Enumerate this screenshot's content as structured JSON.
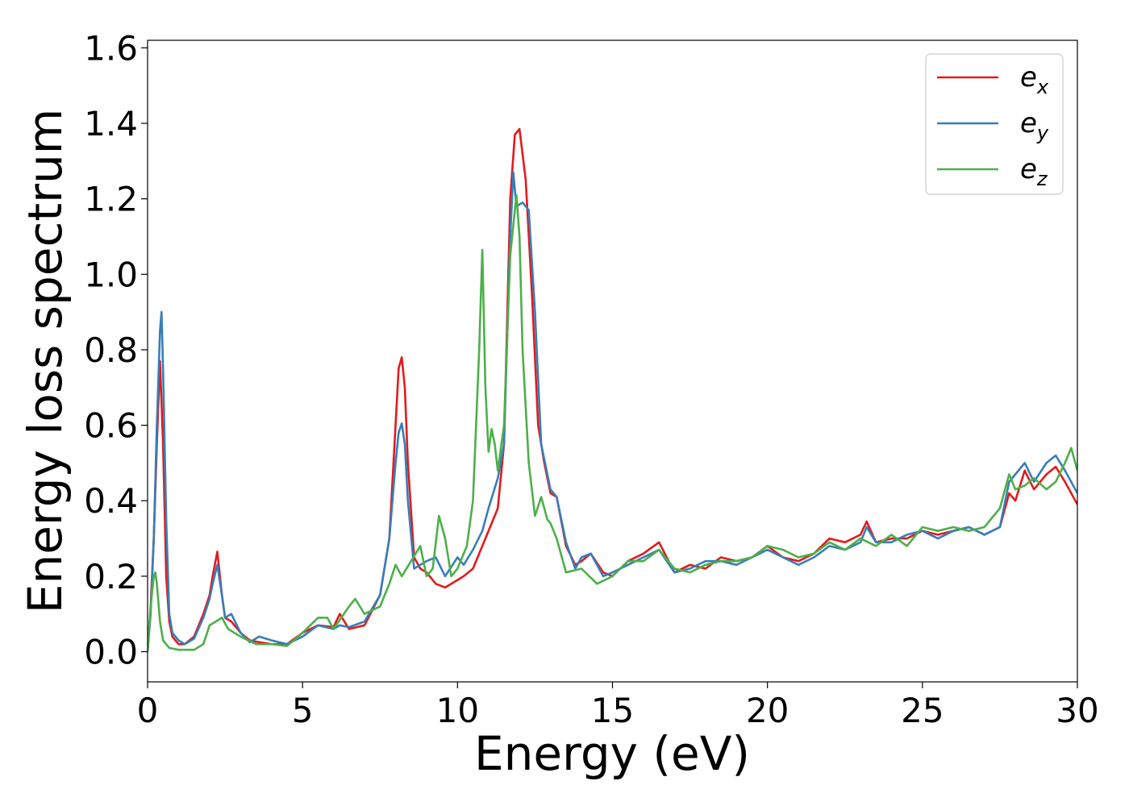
{
  "chart_data": {
    "type": "line",
    "title": "",
    "xlabel": "Energy (eV)",
    "ylabel": "Energy loss spectrum",
    "xlim": [
      0,
      30
    ],
    "ylim": [
      -0.08,
      1.62
    ],
    "xticks": [
      0,
      5,
      10,
      15,
      20,
      25,
      30
    ],
    "yticks": [
      0.0,
      0.2,
      0.4,
      0.6,
      0.8,
      1.0,
      1.2,
      1.4,
      1.6
    ],
    "xtick_labels": [
      "0",
      "5",
      "10",
      "15",
      "20",
      "25",
      "30"
    ],
    "ytick_labels": [
      "0.0",
      "0.2",
      "0.4",
      "0.6",
      "0.8",
      "1.0",
      "1.2",
      "1.4",
      "1.6"
    ],
    "grid": false,
    "legend_position": "top-right",
    "series": [
      {
        "name": "e_x",
        "label_base": "e",
        "label_sub": "x",
        "color": "#e41a1c",
        "x": [
          0,
          0.1,
          0.2,
          0.3,
          0.4,
          0.5,
          0.6,
          0.7,
          0.8,
          1.0,
          1.2,
          1.5,
          1.8,
          2.0,
          2.1,
          2.25,
          2.4,
          2.5,
          2.7,
          3.0,
          3.3,
          3.6,
          4.0,
          4.5,
          5.0,
          5.5,
          6.0,
          6.2,
          6.5,
          7.0,
          7.5,
          7.8,
          8.0,
          8.1,
          8.2,
          8.3,
          8.4,
          8.6,
          8.8,
          9.0,
          9.3,
          9.6,
          10.0,
          10.2,
          10.5,
          10.8,
          11.0,
          11.3,
          11.5,
          11.7,
          11.85,
          12.0,
          12.2,
          12.4,
          12.6,
          12.8,
          13.0,
          13.2,
          13.5,
          13.8,
          14.0,
          14.3,
          14.7,
          15.0,
          15.5,
          16.0,
          16.5,
          17.0,
          17.5,
          18.0,
          18.5,
          19.0,
          19.5,
          20.0,
          20.5,
          21.0,
          21.5,
          22.0,
          22.5,
          23.0,
          23.2,
          23.5,
          24.0,
          24.5,
          25.0,
          25.5,
          26.0,
          26.5,
          27.0,
          27.5,
          27.8,
          28.0,
          28.3,
          28.6,
          29.0,
          29.3,
          29.6,
          30.0
        ],
        "y": [
          0.0,
          0.12,
          0.3,
          0.55,
          0.77,
          0.55,
          0.2,
          0.08,
          0.04,
          0.02,
          0.02,
          0.04,
          0.1,
          0.15,
          0.2,
          0.265,
          0.15,
          0.09,
          0.08,
          0.05,
          0.03,
          0.025,
          0.02,
          0.02,
          0.05,
          0.07,
          0.065,
          0.1,
          0.06,
          0.07,
          0.15,
          0.3,
          0.6,
          0.75,
          0.78,
          0.7,
          0.5,
          0.25,
          0.22,
          0.21,
          0.18,
          0.17,
          0.19,
          0.2,
          0.22,
          0.28,
          0.32,
          0.38,
          0.55,
          1.2,
          1.37,
          1.385,
          1.25,
          0.95,
          0.6,
          0.5,
          0.42,
          0.41,
          0.28,
          0.23,
          0.24,
          0.26,
          0.21,
          0.2,
          0.24,
          0.26,
          0.29,
          0.21,
          0.23,
          0.22,
          0.25,
          0.24,
          0.25,
          0.28,
          0.25,
          0.24,
          0.26,
          0.3,
          0.29,
          0.31,
          0.345,
          0.29,
          0.3,
          0.3,
          0.32,
          0.31,
          0.32,
          0.33,
          0.31,
          0.33,
          0.42,
          0.4,
          0.48,
          0.43,
          0.47,
          0.49,
          0.45,
          0.39
        ]
      },
      {
        "name": "e_y",
        "label_base": "e",
        "label_sub": "y",
        "color": "#377eb8",
        "x": [
          0,
          0.1,
          0.2,
          0.3,
          0.4,
          0.45,
          0.5,
          0.6,
          0.7,
          0.8,
          1.0,
          1.2,
          1.5,
          1.8,
          2.0,
          2.1,
          2.25,
          2.4,
          2.5,
          2.7,
          3.0,
          3.3,
          3.6,
          4.0,
          4.5,
          5.0,
          5.5,
          6.0,
          6.2,
          6.5,
          7.0,
          7.5,
          7.8,
          8.0,
          8.1,
          8.2,
          8.3,
          8.4,
          8.6,
          8.8,
          9.0,
          9.3,
          9.6,
          10.0,
          10.2,
          10.5,
          10.8,
          11.0,
          11.3,
          11.5,
          11.7,
          11.8,
          11.9,
          12.1,
          12.3,
          12.5,
          12.7,
          13.0,
          13.2,
          13.5,
          13.8,
          14.0,
          14.3,
          14.7,
          15.0,
          15.5,
          16.0,
          16.5,
          17.0,
          17.5,
          18.0,
          18.5,
          19.0,
          19.5,
          20.0,
          20.5,
          21.0,
          21.5,
          22.0,
          22.5,
          23.0,
          23.2,
          23.5,
          24.0,
          24.5,
          25.0,
          25.5,
          26.0,
          26.5,
          27.0,
          27.5,
          27.8,
          28.0,
          28.3,
          28.6,
          29.0,
          29.3,
          29.6,
          30.0
        ],
        "y": [
          0.0,
          0.1,
          0.3,
          0.6,
          0.85,
          0.9,
          0.75,
          0.35,
          0.1,
          0.05,
          0.03,
          0.02,
          0.035,
          0.09,
          0.14,
          0.18,
          0.23,
          0.15,
          0.09,
          0.1,
          0.05,
          0.025,
          0.04,
          0.03,
          0.02,
          0.04,
          0.07,
          0.06,
          0.07,
          0.065,
          0.08,
          0.15,
          0.3,
          0.5,
          0.58,
          0.605,
          0.55,
          0.4,
          0.22,
          0.23,
          0.24,
          0.25,
          0.2,
          0.25,
          0.23,
          0.27,
          0.32,
          0.38,
          0.46,
          0.55,
          1.1,
          1.27,
          1.18,
          1.19,
          1.17,
          0.9,
          0.55,
          0.43,
          0.41,
          0.29,
          0.22,
          0.25,
          0.26,
          0.2,
          0.21,
          0.23,
          0.25,
          0.27,
          0.21,
          0.22,
          0.24,
          0.24,
          0.23,
          0.25,
          0.27,
          0.25,
          0.23,
          0.25,
          0.28,
          0.27,
          0.29,
          0.33,
          0.29,
          0.29,
          0.31,
          0.32,
          0.3,
          0.32,
          0.33,
          0.31,
          0.33,
          0.45,
          0.47,
          0.5,
          0.45,
          0.5,
          0.52,
          0.48,
          0.42
        ]
      },
      {
        "name": "e_z",
        "label_base": "e",
        "label_sub": "z",
        "color": "#4daf4a",
        "x": [
          0,
          0.1,
          0.2,
          0.25,
          0.3,
          0.4,
          0.5,
          0.7,
          1.0,
          1.5,
          1.8,
          2.0,
          2.2,
          2.4,
          2.6,
          2.8,
          3.0,
          3.5,
          4.0,
          4.5,
          5.0,
          5.5,
          5.8,
          6.0,
          6.5,
          6.7,
          7.0,
          7.5,
          7.8,
          8.0,
          8.2,
          8.5,
          8.8,
          9.0,
          9.2,
          9.4,
          9.6,
          9.8,
          10.0,
          10.3,
          10.5,
          10.7,
          10.8,
          10.9,
          11.0,
          11.1,
          11.2,
          11.3,
          11.5,
          11.7,
          11.9,
          12.0,
          12.1,
          12.3,
          12.5,
          12.7,
          12.9,
          13.0,
          13.2,
          13.5,
          14.0,
          14.5,
          15.0,
          15.5,
          16.0,
          16.5,
          17.0,
          17.5,
          18.0,
          18.5,
          19.0,
          19.5,
          20.0,
          20.5,
          21.0,
          21.5,
          22.0,
          22.5,
          23.0,
          23.5,
          24.0,
          24.5,
          25.0,
          25.5,
          26.0,
          26.5,
          27.0,
          27.5,
          27.8,
          28.0,
          28.3,
          28.6,
          29.0,
          29.3,
          29.6,
          29.8,
          30.0
        ],
        "y": [
          0.0,
          0.12,
          0.2,
          0.21,
          0.18,
          0.08,
          0.03,
          0.01,
          0.005,
          0.005,
          0.02,
          0.07,
          0.08,
          0.09,
          0.06,
          0.05,
          0.04,
          0.02,
          0.02,
          0.015,
          0.05,
          0.09,
          0.09,
          0.06,
          0.12,
          0.14,
          0.1,
          0.12,
          0.18,
          0.23,
          0.2,
          0.24,
          0.28,
          0.2,
          0.22,
          0.36,
          0.3,
          0.2,
          0.22,
          0.28,
          0.4,
          0.8,
          1.065,
          0.7,
          0.53,
          0.59,
          0.55,
          0.48,
          0.6,
          1.05,
          1.21,
          1.1,
          0.8,
          0.5,
          0.36,
          0.41,
          0.35,
          0.34,
          0.3,
          0.21,
          0.22,
          0.18,
          0.2,
          0.24,
          0.24,
          0.27,
          0.22,
          0.21,
          0.23,
          0.24,
          0.24,
          0.25,
          0.28,
          0.27,
          0.25,
          0.26,
          0.29,
          0.27,
          0.3,
          0.28,
          0.31,
          0.28,
          0.33,
          0.32,
          0.33,
          0.32,
          0.33,
          0.38,
          0.47,
          0.43,
          0.44,
          0.46,
          0.43,
          0.45,
          0.5,
          0.54,
          0.48
        ]
      }
    ]
  }
}
